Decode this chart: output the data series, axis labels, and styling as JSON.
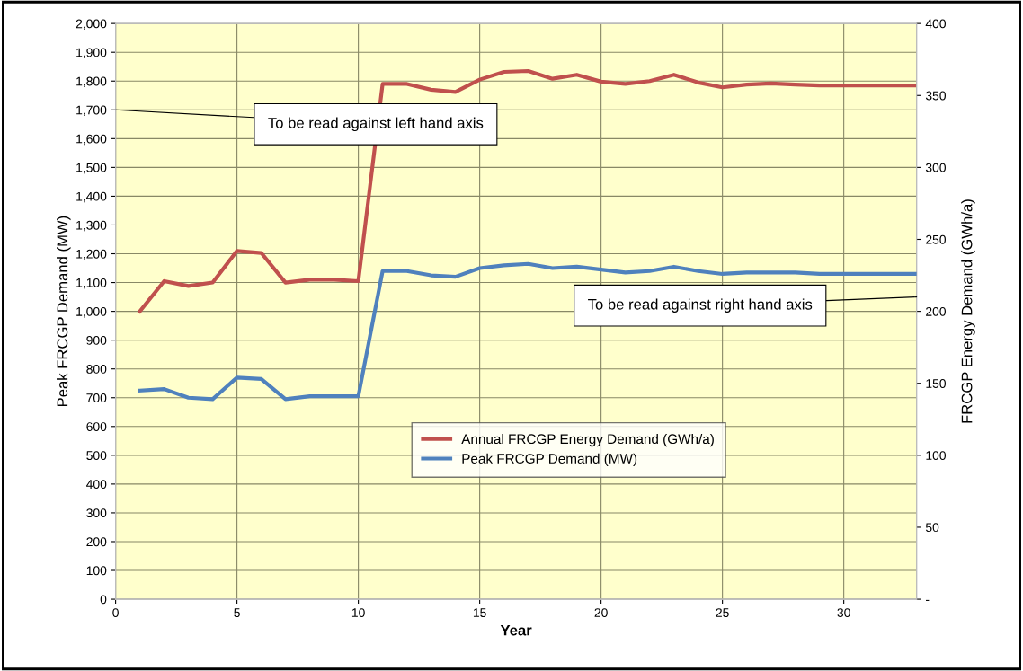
{
  "chart_data": {
    "type": "line",
    "xlabel": "Year",
    "ylabel": "Peak FRCGP Demand (MW)",
    "y2label": "FRCGP Energy Demand (GWh/a)",
    "x": [
      1,
      2,
      3,
      4,
      5,
      6,
      7,
      8,
      9,
      10,
      11,
      12,
      13,
      14,
      15,
      16,
      17,
      18,
      19,
      20,
      21,
      22,
      23,
      24,
      25,
      26,
      27,
      28,
      29,
      30,
      31,
      32,
      33
    ],
    "series": [
      {
        "name": "Annual FRCGP Energy Demand (GWh/a)",
        "color": "#c0504d",
        "values": [
          1000,
          1105,
          1088,
          1100,
          1210,
          1203,
          1100,
          1110,
          1110,
          1105,
          1790,
          1790,
          1770,
          1762,
          1805,
          1832,
          1835,
          1808,
          1822,
          1798,
          1790,
          1800,
          1822,
          1795,
          1778,
          1788,
          1792,
          1788,
          1785,
          1785,
          1785,
          1785,
          1785
        ]
      },
      {
        "name": "Peak FRCGP Demand (MW)",
        "color": "#4f81bd",
        "axis": "y2",
        "values": [
          145,
          146,
          140,
          139,
          154,
          153,
          139,
          141,
          141,
          141,
          228,
          228,
          225,
          224,
          230,
          232,
          233,
          230,
          231,
          229,
          227,
          228,
          231,
          228,
          226,
          227,
          227,
          227,
          226,
          226,
          226,
          226,
          226
        ]
      }
    ],
    "xlim": [
      0,
      33
    ],
    "xticks": [
      0,
      5,
      10,
      15,
      20,
      25,
      30
    ],
    "ylim": [
      0,
      2000
    ],
    "yticks": [
      {
        "value": 0,
        "label": "0"
      },
      {
        "value": 100,
        "label": "100"
      },
      {
        "value": 200,
        "label": "200"
      },
      {
        "value": 300,
        "label": "300"
      },
      {
        "value": 400,
        "label": "400"
      },
      {
        "value": 500,
        "label": "500"
      },
      {
        "value": 600,
        "label": "600"
      },
      {
        "value": 700,
        "label": "700"
      },
      {
        "value": 800,
        "label": "800"
      },
      {
        "value": 900,
        "label": "900"
      },
      {
        "value": 1000,
        "label": "1,000"
      },
      {
        "value": 1100,
        "label": "1,100"
      },
      {
        "value": 1200,
        "label": "1,200"
      },
      {
        "value": 1300,
        "label": "1,300"
      },
      {
        "value": 1400,
        "label": "1,400"
      },
      {
        "value": 1500,
        "label": "1,500"
      },
      {
        "value": 1600,
        "label": "1,600"
      },
      {
        "value": 1700,
        "label": "1,700"
      },
      {
        "value": 1800,
        "label": "1,800"
      },
      {
        "value": 1900,
        "label": "1,900"
      },
      {
        "value": 2000,
        "label": "2,000"
      }
    ],
    "y2lim": [
      0,
      400
    ],
    "y2ticks": [
      {
        "value": 0,
        "label": "-"
      },
      50,
      100,
      150,
      200,
      250,
      300,
      350,
      400
    ],
    "annotations": [
      "To be read against left hand axis",
      "To be read against right hand axis"
    ],
    "grid": true,
    "legend": "bottom right",
    "marker": "none",
    "line_style": "solid"
  }
}
